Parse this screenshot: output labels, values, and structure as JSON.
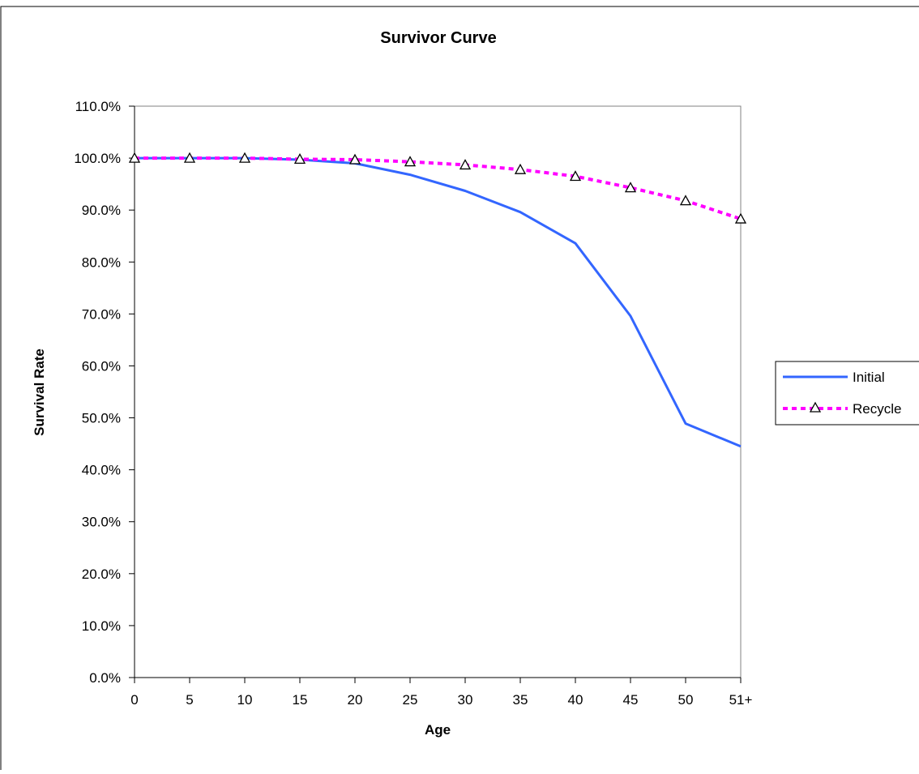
{
  "chart_data": {
    "type": "line",
    "title": "Survivor Curve",
    "xlabel": "Age",
    "ylabel": "Survival Rate",
    "categories": [
      "0",
      "5",
      "10",
      "15",
      "20",
      "25",
      "30",
      "35",
      "40",
      "45",
      "50",
      "51+"
    ],
    "ylim": [
      0,
      110
    ],
    "yticks": [
      "0.0%",
      "10.0%",
      "20.0%",
      "30.0%",
      "40.0%",
      "50.0%",
      "60.0%",
      "70.0%",
      "80.0%",
      "90.0%",
      "100.0%",
      "110.0%"
    ],
    "grid": false,
    "legend_position": "right",
    "series": [
      {
        "name": "Initial",
        "values": [
          100.0,
          100.0,
          100.0,
          99.7,
          99.0,
          96.8,
          93.7,
          89.6,
          83.6,
          69.6,
          48.9,
          44.5
        ],
        "color": "#3366ff",
        "style": "solid",
        "marker": "none"
      },
      {
        "name": "Recycle",
        "values": [
          100.0,
          100.0,
          100.0,
          99.8,
          99.7,
          99.3,
          98.7,
          97.8,
          96.5,
          94.3,
          91.8,
          88.3
        ],
        "color": "#ff00ff",
        "style": "dotted",
        "marker": "triangle"
      }
    ]
  }
}
